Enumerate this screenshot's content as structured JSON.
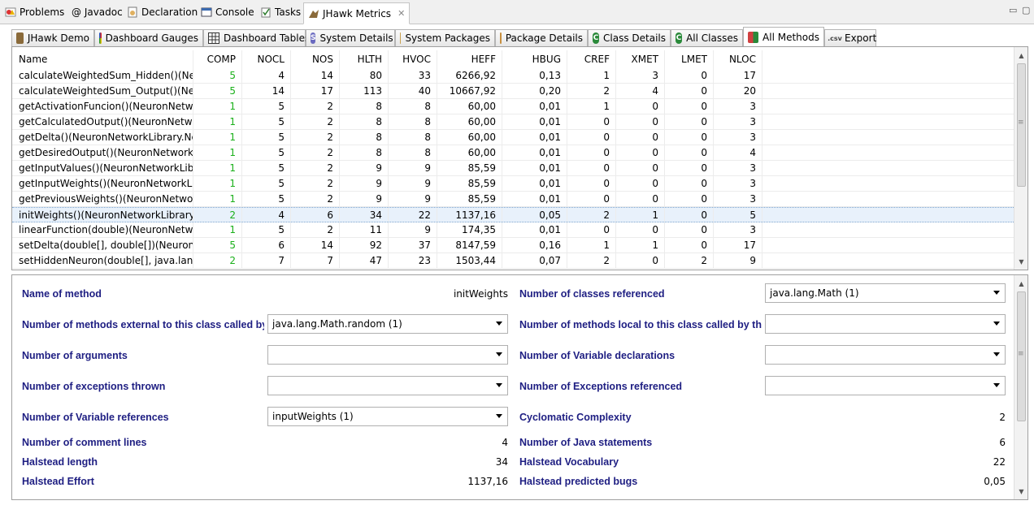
{
  "view_tabs": [
    {
      "label": "Problems",
      "icon": "problems-icon"
    },
    {
      "label": "@ Javadoc",
      "icon": ""
    },
    {
      "label": "Declaration",
      "icon": "declaration-icon"
    },
    {
      "label": "Console",
      "icon": "console-icon"
    },
    {
      "label": "Tasks",
      "icon": "tasks-icon"
    },
    {
      "label": "JHawk Metrics",
      "icon": "jhawk-icon",
      "active": true
    }
  ],
  "jhawk_tabs": [
    {
      "label": "JHawk Demo",
      "icon": "jhawk-demo-icon"
    },
    {
      "label": "Dashboard Gauges",
      "icon": "gauge-icon"
    },
    {
      "label": "Dashboard Tables",
      "icon": "table-icon"
    },
    {
      "label": "System Details",
      "icon": "system-icon"
    },
    {
      "label": "System Packages",
      "icon": "packages-icon"
    },
    {
      "label": "Package Details",
      "icon": "package-details-icon"
    },
    {
      "label": "Class Details",
      "icon": "class-icon"
    },
    {
      "label": "All Classes",
      "icon": "all-classes-icon"
    },
    {
      "label": "All Methods",
      "icon": "all-methods-icon",
      "active": true
    },
    {
      "label": "Export",
      "icon": "export-icon"
    }
  ],
  "table": {
    "columns": [
      "Name",
      "COMP",
      "NOCL",
      "NOS",
      "HLTH",
      "HVOC",
      "HEFF",
      "HBUG",
      "CREF",
      "XMET",
      "LMET",
      "NLOC"
    ],
    "rows": [
      [
        "calculateWeightedSum_Hidden()(Neu...",
        "5",
        "4",
        "14",
        "80",
        "33",
        "6266,92",
        "0,13",
        "1",
        "3",
        "0",
        "17"
      ],
      [
        "calculateWeightedSum_Output()(Neu...",
        "5",
        "14",
        "17",
        "113",
        "40",
        "10667,92",
        "0,20",
        "2",
        "4",
        "0",
        "20"
      ],
      [
        "getActivationFuncion()(NeuronNetwo...",
        "1",
        "5",
        "2",
        "8",
        "8",
        "60,00",
        "0,01",
        "1",
        "0",
        "0",
        "3"
      ],
      [
        "getCalculatedOutput()(NeuronNetwo...",
        "1",
        "5",
        "2",
        "8",
        "8",
        "60,00",
        "0,01",
        "0",
        "0",
        "0",
        "3"
      ],
      [
        "getDelta()(NeuronNetworkLibrary.Ne...",
        "1",
        "5",
        "2",
        "8",
        "8",
        "60,00",
        "0,01",
        "0",
        "0",
        "0",
        "3"
      ],
      [
        "getDesiredOutput()(NeuronNetworkLi...",
        "1",
        "5",
        "2",
        "8",
        "8",
        "60,00",
        "0,01",
        "0",
        "0",
        "0",
        "4"
      ],
      [
        "getInputValues()(NeuronNetworkLibr...",
        "1",
        "5",
        "2",
        "9",
        "9",
        "85,59",
        "0,01",
        "0",
        "0",
        "0",
        "3"
      ],
      [
        "getInputWeights()(NeuronNetworkLib...",
        "1",
        "5",
        "2",
        "9",
        "9",
        "85,59",
        "0,01",
        "0",
        "0",
        "0",
        "3"
      ],
      [
        "getPreviousWeights()(NeuronNetwor...",
        "1",
        "5",
        "2",
        "9",
        "9",
        "85,59",
        "0,01",
        "0",
        "0",
        "0",
        "3"
      ],
      [
        "initWeights()(NeuronNetworkLibrary....",
        "2",
        "4",
        "6",
        "34",
        "22",
        "1137,16",
        "0,05",
        "2",
        "1",
        "0",
        "5"
      ],
      [
        "linearFunction(double)(NeuronNetwo...",
        "1",
        "5",
        "2",
        "11",
        "9",
        "174,35",
        "0,01",
        "0",
        "0",
        "0",
        "3"
      ],
      [
        "setDelta(double[], double[])(NeuronN...",
        "5",
        "6",
        "14",
        "92",
        "37",
        "8147,59",
        "0,16",
        "1",
        "1",
        "0",
        "17"
      ],
      [
        "setHiddenNeuron(double[], java.lang....",
        "2",
        "7",
        "7",
        "47",
        "23",
        "1503,44",
        "0,07",
        "2",
        "0",
        "2",
        "9"
      ]
    ],
    "selected_index": 9
  },
  "details": {
    "name_of_method_label": "Name of method",
    "name_of_method_value": "initWeights",
    "classes_referenced_label": "Number of classes referenced",
    "classes_referenced_value": "java.lang.Math  (1)",
    "ext_methods_label": "Number of methods external to this class called by this method",
    "ext_methods_value": "java.lang.Math.random  (1)",
    "local_methods_label": "Number of methods local to this class called by this method",
    "local_methods_value": "",
    "arguments_label": "Number of arguments",
    "arguments_value": "",
    "var_decl_label": "Number of Variable declarations",
    "var_decl_value": "",
    "exceptions_thrown_label": "Number of exceptions thrown",
    "exceptions_thrown_value": "",
    "exceptions_ref_label": "Number of Exceptions referenced",
    "exceptions_ref_value": "",
    "var_refs_label": "Number of Variable references",
    "var_refs_value": "inputWeights  (1)",
    "cyclomatic_label": "Cyclomatic Complexity",
    "cyclomatic_value": "2",
    "comment_lines_label": "Number of comment lines",
    "comment_lines_value": "4",
    "java_statements_label": "Number of Java statements",
    "java_statements_value": "6",
    "halstead_length_label": "Halstead length",
    "halstead_length_value": "34",
    "halstead_vocab_label": "Halstead Vocabulary",
    "halstead_vocab_value": "22",
    "halstead_effort_label": "Halstead Effort",
    "halstead_effort_value": "1137,16",
    "halstead_bugs_label": "Halstead predicted bugs",
    "halstead_bugs_value": "0,05"
  }
}
